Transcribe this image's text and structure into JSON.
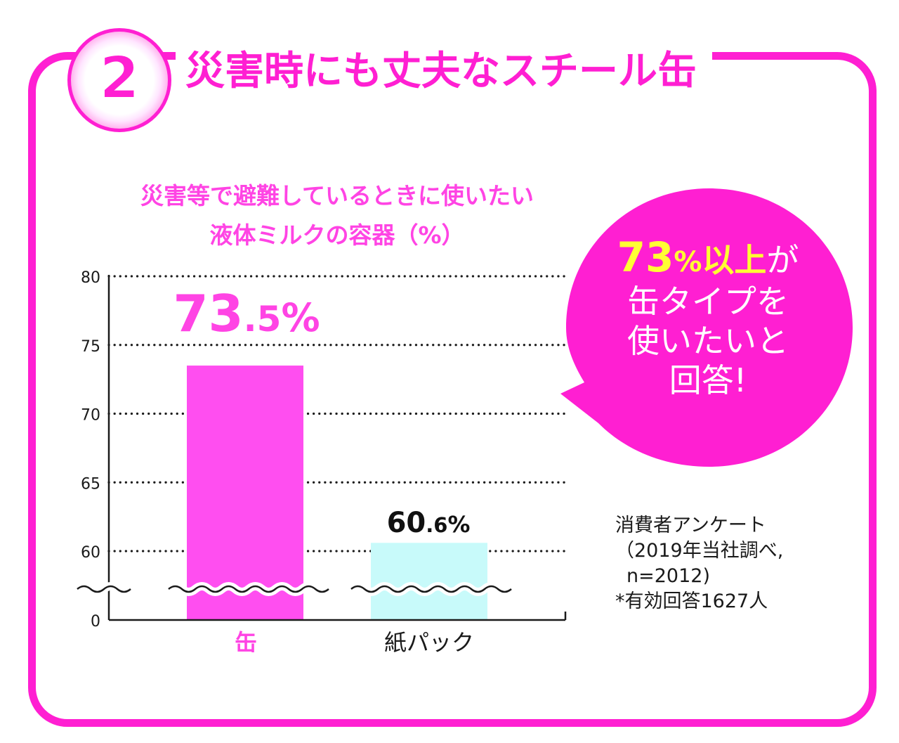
{
  "section": {
    "number": "2",
    "heading": "災害時にも丈夫なスチール缶"
  },
  "callout": {
    "highlight_value": "73",
    "highlight_unit": "%",
    "highlight_suffix": "以上",
    "line1_rest": "が",
    "line2": "缶タイプを",
    "line3": "使いたいと",
    "line4": "回答!"
  },
  "survey_note": {
    "line1": "消費者アンケート",
    "line2": "（2019年当社調べ,",
    "line3": "n=2012)",
    "line4": "*有効回答1627人"
  },
  "colors": {
    "frame": "#ff1fd2",
    "title": "#ff44e4",
    "bar_can": "#ff4ef0",
    "bar_carton": "#c8fafa",
    "bubble": "#ff1fd2",
    "highlight": "#ffff33"
  },
  "chart_data": {
    "type": "bar",
    "title_line1": "災害等で避難しているときに使いたい",
    "title_line2": "液体ミルクの容器（%）",
    "xlabel": "",
    "ylabel": "",
    "ylim": [
      0,
      80
    ],
    "axis_break": true,
    "yticks": [
      "0",
      "60",
      "65",
      "70",
      "75",
      "80"
    ],
    "grid": "dotted horizontal",
    "categories": [
      "缶",
      "紙パック"
    ],
    "values": [
      73.5,
      60.6
    ],
    "data_labels": [
      {
        "int": "73",
        "dec": ".5",
        "unit": "%"
      },
      {
        "int": "60",
        "dec": ".6",
        "unit": "%"
      }
    ]
  }
}
